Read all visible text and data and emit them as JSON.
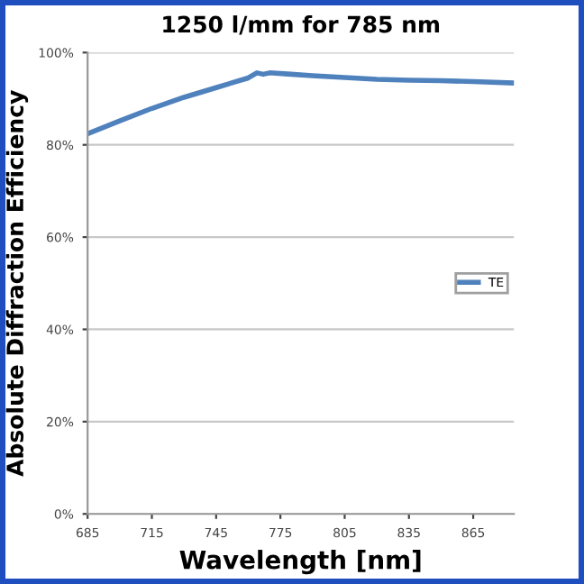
{
  "chart_data": {
    "type": "line",
    "title": "1250 l/mm for 785 nm",
    "xlabel": "Wavelength [nm]",
    "ylabel": "Absolute Diffraction Efficiency",
    "x": [
      685,
      700,
      715,
      730,
      745,
      760,
      764,
      767,
      770,
      780,
      790,
      805,
      820,
      835,
      850,
      865,
      884
    ],
    "series": [
      {
        "name": "TE",
        "color": "#4f81bd",
        "values": [
          82.4,
          85.2,
          87.9,
          90.3,
          92.4,
          94.5,
          95.6,
          95.3,
          95.6,
          95.3,
          95.0,
          94.6,
          94.2,
          94.0,
          93.9,
          93.7,
          93.4
        ]
      }
    ],
    "xlim": [
      685,
      884
    ],
    "xticks": [
      685,
      715,
      745,
      775,
      805,
      835,
      865
    ],
    "ylim": [
      0,
      100
    ],
    "yticks": [
      {
        "value": 0,
        "label": "0%"
      },
      {
        "value": 20,
        "label": "20%"
      },
      {
        "value": 40,
        "label": "40%"
      },
      {
        "value": 60,
        "label": "60%"
      },
      {
        "value": 80,
        "label": "80%"
      },
      {
        "value": 100,
        "label": "100%"
      }
    ],
    "grid": "y",
    "legend": "center right",
    "marker": "none",
    "line_style": "solid"
  }
}
